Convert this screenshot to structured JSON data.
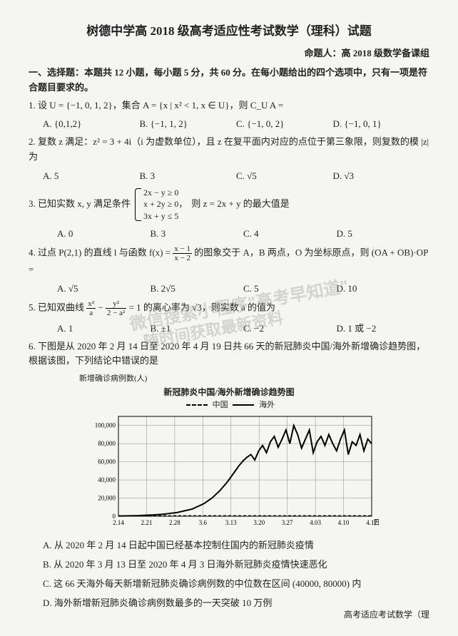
{
  "title": "树德中学高 2018 级高考适应性考试数学（理科）试题",
  "author": "命题人：高 2018 级数学备课组",
  "section1": "一、选择题：本题共 12 小题，每小题 5 分，共 60 分。在每小题给出的四个选项中，只有一项是符合题目要求的。",
  "q1": {
    "text": "1. 设 U = {−1, 0, 1, 2}，集合 A = {x | x² < 1, x ∈ U}，则 C_U A =",
    "A": "A. {0,1,2}",
    "B": "B. {−1, 1, 2}",
    "C": "C. {−1, 0, 2}",
    "D": "D. {−1, 0, 1}"
  },
  "q2": {
    "text": "2. 复数 z 满足：z² = 3 + 4i（i 为虚数单位），且 z 在复平面内对应的点位于第三象限，则复数的模 |z| 为",
    "A": "A. 5",
    "B": "B. 3",
    "C": "C. √5",
    "D": "D. √3"
  },
  "q3": {
    "prefix": "3. 已知实数 x, y 满足条件",
    "line1": "2x − y ≥ 0",
    "line2": "x + 2y ≥ 0，",
    "line3": "3x + y ≤ 5",
    "suffix": "则 z = 2x + y 的最大值是",
    "A": "A. 0",
    "B": "B. 3",
    "C": "C. 4",
    "D": "D. 5"
  },
  "q4": {
    "prefix": "4. 过点 P(2,1) 的直线 l 与函数 f(x) = ",
    "num": "x − 1",
    "den": "x − 2",
    "suffix": " 的图象交于 A，B 两点，O 为坐标原点，则 (OA + OB)·OP =",
    "A": "A. √5",
    "B": "B. 2√5",
    "C": "C. 5",
    "D": "D. 10"
  },
  "q5": {
    "prefix": "5. 已知双曲线 ",
    "t1n": "x²",
    "t1d": "a",
    "minus": " − ",
    "t2n": "y²",
    "t2d": "2 − a²",
    "suffix": " = 1 的离心率为 √3，则实数 a 的值为",
    "A": "A. 1",
    "B": "B. ±1",
    "C": "C. −2",
    "D": "D. 1 或 −2"
  },
  "q6": {
    "text": "6. 下图是从 2020 年 2 月 14 日至 2020 年 4 月 19 日共 66 天的新冠肺炎中国/海外新增确诊趋势图，根据该图，下列结论中错误的是",
    "chart_title": "新冠肺炎中国/海外新增确诊趋势图",
    "ylabel": "新增确诊病例数(人)",
    "legend_cn": "中国",
    "legend_ov": "海外",
    "xlabel": "日期",
    "yticks": [
      "0",
      "20,000",
      "40,000",
      "60,000",
      "80,000",
      "100,000"
    ],
    "xticks": [
      "2.14",
      "2.21",
      "2.28",
      "3.6",
      "3.13",
      "3.20",
      "3.27",
      "4.03",
      "4.10",
      "4.17"
    ],
    "ylim": [
      0,
      110000
    ],
    "background_color": "#f5f5f3",
    "grid_color": "#888",
    "line_color": "#000",
    "china_series": [
      0,
      0,
      0,
      0,
      0,
      0,
      0,
      0,
      0,
      0,
      0,
      0,
      0,
      0,
      0,
      0,
      0,
      0,
      0,
      0,
      0,
      0,
      0,
      0,
      0,
      0,
      0,
      0,
      0,
      0,
      0,
      0,
      0,
      0,
      0,
      0,
      0,
      0,
      0,
      0,
      0,
      0,
      0,
      0,
      0,
      0,
      0,
      0,
      0,
      0,
      0,
      0,
      0,
      0,
      0,
      0,
      0,
      0,
      0,
      0,
      0,
      0,
      0,
      0,
      0,
      0
    ],
    "overseas_series": [
      200,
      300,
      400,
      500,
      600,
      700,
      900,
      1100,
      1300,
      1500,
      1800,
      2100,
      2500,
      3000,
      3500,
      4000,
      5000,
      6000,
      7000,
      8000,
      10000,
      12000,
      14000,
      17000,
      20000,
      24000,
      28000,
      33000,
      38000,
      44000,
      50000,
      56000,
      61000,
      65000,
      68000,
      62000,
      72000,
      78000,
      70000,
      82000,
      88000,
      76000,
      85000,
      95000,
      80000,
      100000,
      90000,
      75000,
      85000,
      95000,
      70000,
      82000,
      88000,
      78000,
      90000,
      80000,
      72000,
      85000,
      95000,
      68000,
      82000,
      78000,
      90000,
      72000,
      85000,
      80000
    ],
    "A": "A. 从 2020 年 2 月 14 日起中国已经基本控制住国内的新冠肺炎疫情",
    "B": "B. 从 2020 年 3 月 13 日至 2020 年 4 月 3 日海外新冠肺炎疫情快速恶化",
    "C": "C. 这 66 天海外每天新增新冠肺炎确诊病例数的中位数在区间 (40000, 80000) 内",
    "D": "D. 海外新增新冠肺炎确诊病例数最多的一天突破 10 万例"
  },
  "footer": "高考适应考试数学（理",
  "watermark1": "微信搜索小程序\"高考早知道\"",
  "watermark2": "随时间获取最新资料"
}
